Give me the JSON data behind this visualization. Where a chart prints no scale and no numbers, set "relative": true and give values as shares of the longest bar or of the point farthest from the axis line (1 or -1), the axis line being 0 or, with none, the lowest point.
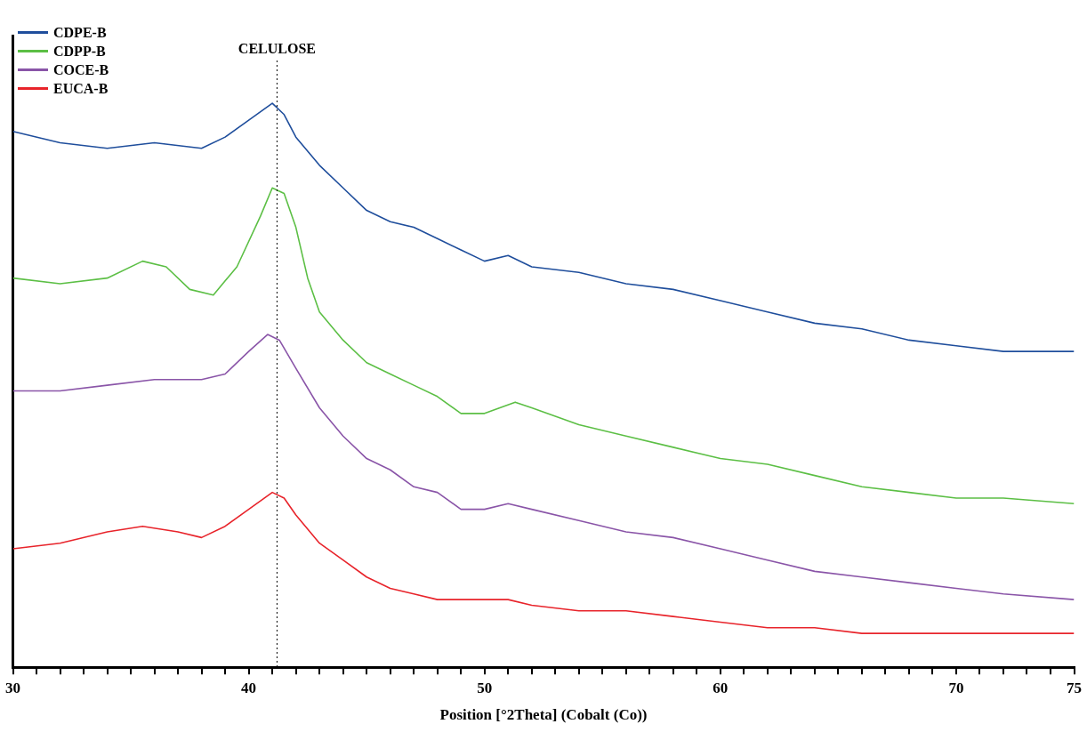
{
  "chart_data": {
    "type": "line",
    "relative": true,
    "xlabel": "Position [°2Theta] (Cobalt (Co))",
    "xlim": [
      30,
      75
    ],
    "xticks": [
      30,
      {
        "value": 31,
        "label": null
      },
      {
        "value": 32,
        "label": null
      },
      {
        "value": 33,
        "label": null
      },
      {
        "value": 34,
        "label": null
      },
      {
        "value": 35,
        "label": null
      },
      {
        "value": 36,
        "label": null
      },
      {
        "value": 37,
        "label": null
      },
      {
        "value": 38,
        "label": null
      },
      {
        "value": 39,
        "label": null
      },
      40,
      {
        "value": 41,
        "label": null
      },
      {
        "value": 42,
        "label": null
      },
      {
        "value": 43,
        "label": null
      },
      {
        "value": 44,
        "label": null
      },
      {
        "value": 45,
        "label": null
      },
      {
        "value": 46,
        "label": null
      },
      {
        "value": 47,
        "label": null
      },
      {
        "value": 48,
        "label": null
      },
      {
        "value": 49,
        "label": null
      },
      50,
      {
        "value": 51,
        "label": null
      },
      {
        "value": 52,
        "label": null
      },
      {
        "value": 53,
        "label": null
      },
      {
        "value": 54,
        "label": null
      },
      {
        "value": 55,
        "label": null
      },
      {
        "value": 56,
        "label": null
      },
      {
        "value": 57,
        "label": null
      },
      {
        "value": 58,
        "label": null
      },
      {
        "value": 59,
        "label": null
      },
      60,
      {
        "value": 61,
        "label": null
      },
      {
        "value": 62,
        "label": null
      },
      {
        "value": 63,
        "label": null
      },
      {
        "value": 64,
        "label": null
      },
      {
        "value": 65,
        "label": null
      },
      {
        "value": 66,
        "label": null
      },
      {
        "value": 67,
        "label": null
      },
      {
        "value": 68,
        "label": null
      },
      {
        "value": 69,
        "label": null
      },
      70,
      {
        "value": 71,
        "label": null
      },
      {
        "value": 72,
        "label": null
      },
      {
        "value": 73,
        "label": null
      },
      {
        "value": 74,
        "label": null
      },
      75
    ],
    "legend": "top left",
    "grid": false,
    "marker": "none",
    "line_style": "solid",
    "ref_lines": [
      {
        "axis": "x",
        "value": 41.2,
        "label": "CELULOSE",
        "line_style": "dotted",
        "color": "#000000"
      }
    ],
    "series": [
      {
        "name": "CDPE-B",
        "color": "#1f4e9c",
        "x": [
          30,
          32,
          34,
          36,
          38,
          39,
          40,
          41,
          41.5,
          42,
          43,
          44,
          45,
          46,
          47,
          48,
          49,
          50,
          51,
          52,
          54,
          56,
          58,
          60,
          62,
          64,
          66,
          68,
          70,
          72,
          75
        ],
        "values": [
          0.95,
          0.93,
          0.92,
          0.93,
          0.92,
          0.94,
          0.97,
          1,
          0.98,
          0.94,
          0.89,
          0.85,
          0.81,
          0.79,
          0.78,
          0.76,
          0.74,
          0.72,
          0.73,
          0.71,
          0.7,
          0.68,
          0.67,
          0.65,
          0.63,
          0.61,
          0.6,
          0.58,
          0.57,
          0.56,
          0.56
        ]
      },
      {
        "name": "CDPP-B",
        "color": "#5cbf45",
        "x": [
          30,
          32,
          34,
          35.5,
          36.5,
          37.5,
          38.5,
          39.5,
          40.5,
          41,
          41.5,
          42,
          42.5,
          43,
          44,
          45,
          46,
          47,
          48,
          49,
          50,
          51.3,
          52,
          54,
          56,
          58,
          60,
          62,
          64,
          66,
          68,
          70,
          72,
          75
        ],
        "values": [
          0.69,
          0.68,
          0.69,
          0.72,
          0.71,
          0.67,
          0.66,
          0.71,
          0.8,
          0.85,
          0.84,
          0.78,
          0.69,
          0.63,
          0.58,
          0.54,
          0.52,
          0.5,
          0.48,
          0.45,
          0.45,
          0.47,
          0.46,
          0.43,
          0.41,
          0.39,
          0.37,
          0.36,
          0.34,
          0.32,
          0.31,
          0.3,
          0.3,
          0.29
        ]
      },
      {
        "name": "COCE-B",
        "color": "#8a55a8",
        "x": [
          30,
          32,
          34,
          36,
          38,
          39,
          40,
          40.8,
          41.3,
          42,
          43,
          44,
          45,
          46,
          47,
          48,
          49,
          50,
          51,
          52,
          54,
          56,
          58,
          60,
          62,
          64,
          66,
          68,
          70,
          72,
          75
        ],
        "values": [
          0.49,
          0.49,
          0.5,
          0.51,
          0.51,
          0.52,
          0.56,
          0.59,
          0.58,
          0.53,
          0.46,
          0.41,
          0.37,
          0.35,
          0.32,
          0.31,
          0.28,
          0.28,
          0.29,
          0.28,
          0.26,
          0.24,
          0.23,
          0.21,
          0.19,
          0.17,
          0.16,
          0.15,
          0.14,
          0.13,
          0.12
        ]
      },
      {
        "name": "EUCA-B",
        "color": "#e8242b",
        "x": [
          30,
          32,
          34,
          35.5,
          37,
          38,
          39,
          40,
          41,
          41.5,
          42,
          43,
          44,
          45,
          46,
          47,
          48,
          50,
          51,
          52,
          54,
          56,
          58,
          60,
          62,
          64,
          66,
          68,
          70,
          75
        ],
        "values": [
          0.21,
          0.22,
          0.24,
          0.25,
          0.24,
          0.23,
          0.25,
          0.28,
          0.31,
          0.3,
          0.27,
          0.22,
          0.19,
          0.16,
          0.14,
          0.13,
          0.12,
          0.12,
          0.12,
          0.11,
          0.1,
          0.1,
          0.09,
          0.08,
          0.07,
          0.07,
          0.06,
          0.06,
          0.06,
          0.06
        ]
      }
    ]
  }
}
